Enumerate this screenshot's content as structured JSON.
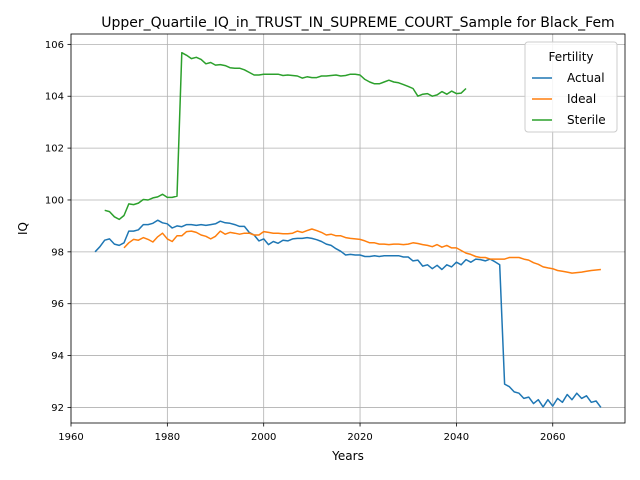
{
  "chart_data": {
    "type": "line",
    "title": "Upper_Quartile_IQ_in_TRUST_IN_SUPREME_COURT_Sample for Black_Fem",
    "xlabel": "Years",
    "ylabel": "IQ",
    "xlim": [
      1960,
      2075
    ],
    "ylim": [
      91.4,
      106.4
    ],
    "xticks": [
      1960,
      1980,
      2000,
      2020,
      2040,
      2060
    ],
    "yticks": [
      92,
      94,
      96,
      98,
      100,
      102,
      104,
      106
    ],
    "grid": true,
    "legend": {
      "title": "Fertility",
      "placement": "top-right"
    },
    "series": [
      {
        "name": "Actual",
        "color": "#1f77b4",
        "x": [
          1965,
          1966,
          1967,
          1968,
          1969,
          1970,
          1971,
          1972,
          1973,
          1974,
          1975,
          1976,
          1977,
          1978,
          1979,
          1980,
          1981,
          1982,
          1983,
          1984,
          1985,
          1986,
          1987,
          1988,
          1989,
          1990,
          1991,
          1992,
          1993,
          1994,
          1995,
          1996,
          1997,
          1998,
          1999,
          2000,
          2001,
          2002,
          2003,
          2004,
          2005,
          2006,
          2007,
          2008,
          2009,
          2010,
          2011,
          2012,
          2013,
          2014,
          2015,
          2016,
          2017,
          2018,
          2019,
          2020,
          2021,
          2022,
          2023,
          2024,
          2025,
          2026,
          2027,
          2028,
          2029,
          2030,
          2031,
          2032,
          2033,
          2034,
          2035,
          2036,
          2037,
          2038,
          2039,
          2040,
          2041,
          2042,
          2043,
          2044,
          2045,
          2046,
          2047,
          2048,
          2049,
          2050,
          2051,
          2052,
          2053,
          2054,
          2055,
          2056,
          2057,
          2058,
          2059,
          2060,
          2061,
          2062,
          2063,
          2064,
          2065,
          2066,
          2067,
          2068,
          2069,
          2070
        ],
        "values": [
          98.0,
          98.2,
          98.45,
          98.5,
          98.3,
          98.25,
          98.35,
          98.8,
          98.8,
          98.85,
          99.05,
          99.05,
          99.1,
          99.22,
          99.12,
          99.08,
          98.92,
          99.0,
          98.97,
          99.05,
          99.05,
          99.02,
          99.05,
          99.02,
          99.05,
          99.08,
          99.18,
          99.12,
          99.1,
          99.05,
          98.98,
          98.98,
          98.75,
          98.65,
          98.42,
          98.5,
          98.28,
          98.4,
          98.33,
          98.45,
          98.42,
          98.5,
          98.52,
          98.52,
          98.55,
          98.52,
          98.47,
          98.4,
          98.3,
          98.25,
          98.12,
          98.02,
          97.88,
          97.9,
          97.88,
          97.88,
          97.82,
          97.82,
          97.85,
          97.82,
          97.85,
          97.85,
          97.85,
          97.85,
          97.8,
          97.8,
          97.65,
          97.68,
          97.45,
          97.5,
          97.35,
          97.48,
          97.32,
          97.5,
          97.42,
          97.6,
          97.5,
          97.7,
          97.6,
          97.72,
          97.7,
          97.65,
          97.72,
          97.62,
          97.5,
          92.9,
          92.8,
          92.6,
          92.55,
          92.35,
          92.4,
          92.15,
          92.3,
          92.02,
          92.3,
          92.05,
          92.35,
          92.2,
          92.5,
          92.3,
          92.55,
          92.35,
          92.45,
          92.2,
          92.25,
          92.0
        ]
      },
      {
        "name": "Ideal",
        "color": "#ff7f0e",
        "x": [
          1971,
          1972,
          1973,
          1974,
          1975,
          1976,
          1977,
          1978,
          1979,
          1980,
          1981,
          1982,
          1983,
          1984,
          1985,
          1986,
          1987,
          1988,
          1989,
          1990,
          1991,
          1992,
          1993,
          1994,
          1995,
          1996,
          1997,
          1998,
          1999,
          2000,
          2001,
          2002,
          2003,
          2004,
          2005,
          2006,
          2007,
          2008,
          2009,
          2010,
          2011,
          2012,
          2013,
          2014,
          2015,
          2016,
          2017,
          2018,
          2019,
          2020,
          2021,
          2022,
          2023,
          2024,
          2025,
          2026,
          2027,
          2028,
          2029,
          2030,
          2031,
          2032,
          2033,
          2034,
          2035,
          2036,
          2037,
          2038,
          2039,
          2040,
          2041,
          2042,
          2043,
          2044,
          2045,
          2046,
          2047,
          2048,
          2049,
          2050,
          2051,
          2052,
          2053,
          2054,
          2055,
          2056,
          2057,
          2058,
          2059,
          2060,
          2061,
          2062,
          2063,
          2064,
          2065,
          2066,
          2067,
          2068,
          2069,
          2070
        ],
        "values": [
          98.15,
          98.35,
          98.48,
          98.45,
          98.55,
          98.48,
          98.38,
          98.58,
          98.72,
          98.5,
          98.4,
          98.62,
          98.62,
          98.78,
          98.8,
          98.75,
          98.65,
          98.6,
          98.5,
          98.6,
          98.8,
          98.68,
          98.75,
          98.72,
          98.68,
          98.72,
          98.72,
          98.65,
          98.65,
          98.78,
          98.75,
          98.72,
          98.72,
          98.7,
          98.7,
          98.72,
          98.8,
          98.75,
          98.82,
          98.88,
          98.82,
          98.75,
          98.65,
          98.68,
          98.62,
          98.62,
          98.55,
          98.52,
          98.5,
          98.48,
          98.42,
          98.35,
          98.35,
          98.3,
          98.3,
          98.28,
          98.3,
          98.3,
          98.28,
          98.3,
          98.35,
          98.32,
          98.28,
          98.25,
          98.2,
          98.28,
          98.18,
          98.25,
          98.15,
          98.15,
          98.05,
          97.95,
          97.9,
          97.82,
          97.78,
          97.78,
          97.72,
          97.72,
          97.72,
          97.72,
          97.78,
          97.78,
          97.78,
          97.72,
          97.68,
          97.58,
          97.52,
          97.42,
          97.38,
          97.35,
          97.28,
          97.25,
          97.22,
          97.18,
          97.2,
          97.22,
          97.25,
          97.28,
          97.3,
          97.32
        ]
      },
      {
        "name": "Sterile",
        "color": "#2ca02c",
        "x": [
          1967,
          1968,
          1969,
          1970,
          1971,
          1972,
          1973,
          1974,
          1975,
          1976,
          1977,
          1978,
          1979,
          1980,
          1981,
          1982,
          1983,
          1984,
          1985,
          1986,
          1987,
          1988,
          1989,
          1990,
          1991,
          1992,
          1993,
          1994,
          1995,
          1996,
          1997,
          1998,
          1999,
          2000,
          2001,
          2002,
          2003,
          2004,
          2005,
          2006,
          2007,
          2008,
          2009,
          2010,
          2011,
          2012,
          2013,
          2014,
          2015,
          2016,
          2017,
          2018,
          2019,
          2020,
          2021,
          2022,
          2023,
          2024,
          2025,
          2026,
          2027,
          2028,
          2029,
          2030,
          2031,
          2032,
          2033,
          2034,
          2035,
          2036,
          2037,
          2038,
          2039,
          2040,
          2041,
          2042
        ],
        "values": [
          99.6,
          99.55,
          99.35,
          99.25,
          99.4,
          99.85,
          99.82,
          99.88,
          100.02,
          100.0,
          100.08,
          100.12,
          100.22,
          100.1,
          100.1,
          100.15,
          105.68,
          105.58,
          105.45,
          105.5,
          105.42,
          105.25,
          105.3,
          105.2,
          105.22,
          105.18,
          105.1,
          105.08,
          105.08,
          105.02,
          104.92,
          104.82,
          104.82,
          104.85,
          104.85,
          104.85,
          104.85,
          104.8,
          104.82,
          104.8,
          104.78,
          104.7,
          104.75,
          104.72,
          104.72,
          104.78,
          104.78,
          104.8,
          104.82,
          104.78,
          104.8,
          104.85,
          104.85,
          104.82,
          104.65,
          104.55,
          104.48,
          104.48,
          104.55,
          104.62,
          104.55,
          104.52,
          104.45,
          104.38,
          104.3,
          104.0,
          104.08,
          104.1,
          104.0,
          104.05,
          104.18,
          104.08,
          104.2,
          104.1,
          104.12,
          104.3
        ]
      }
    ]
  }
}
